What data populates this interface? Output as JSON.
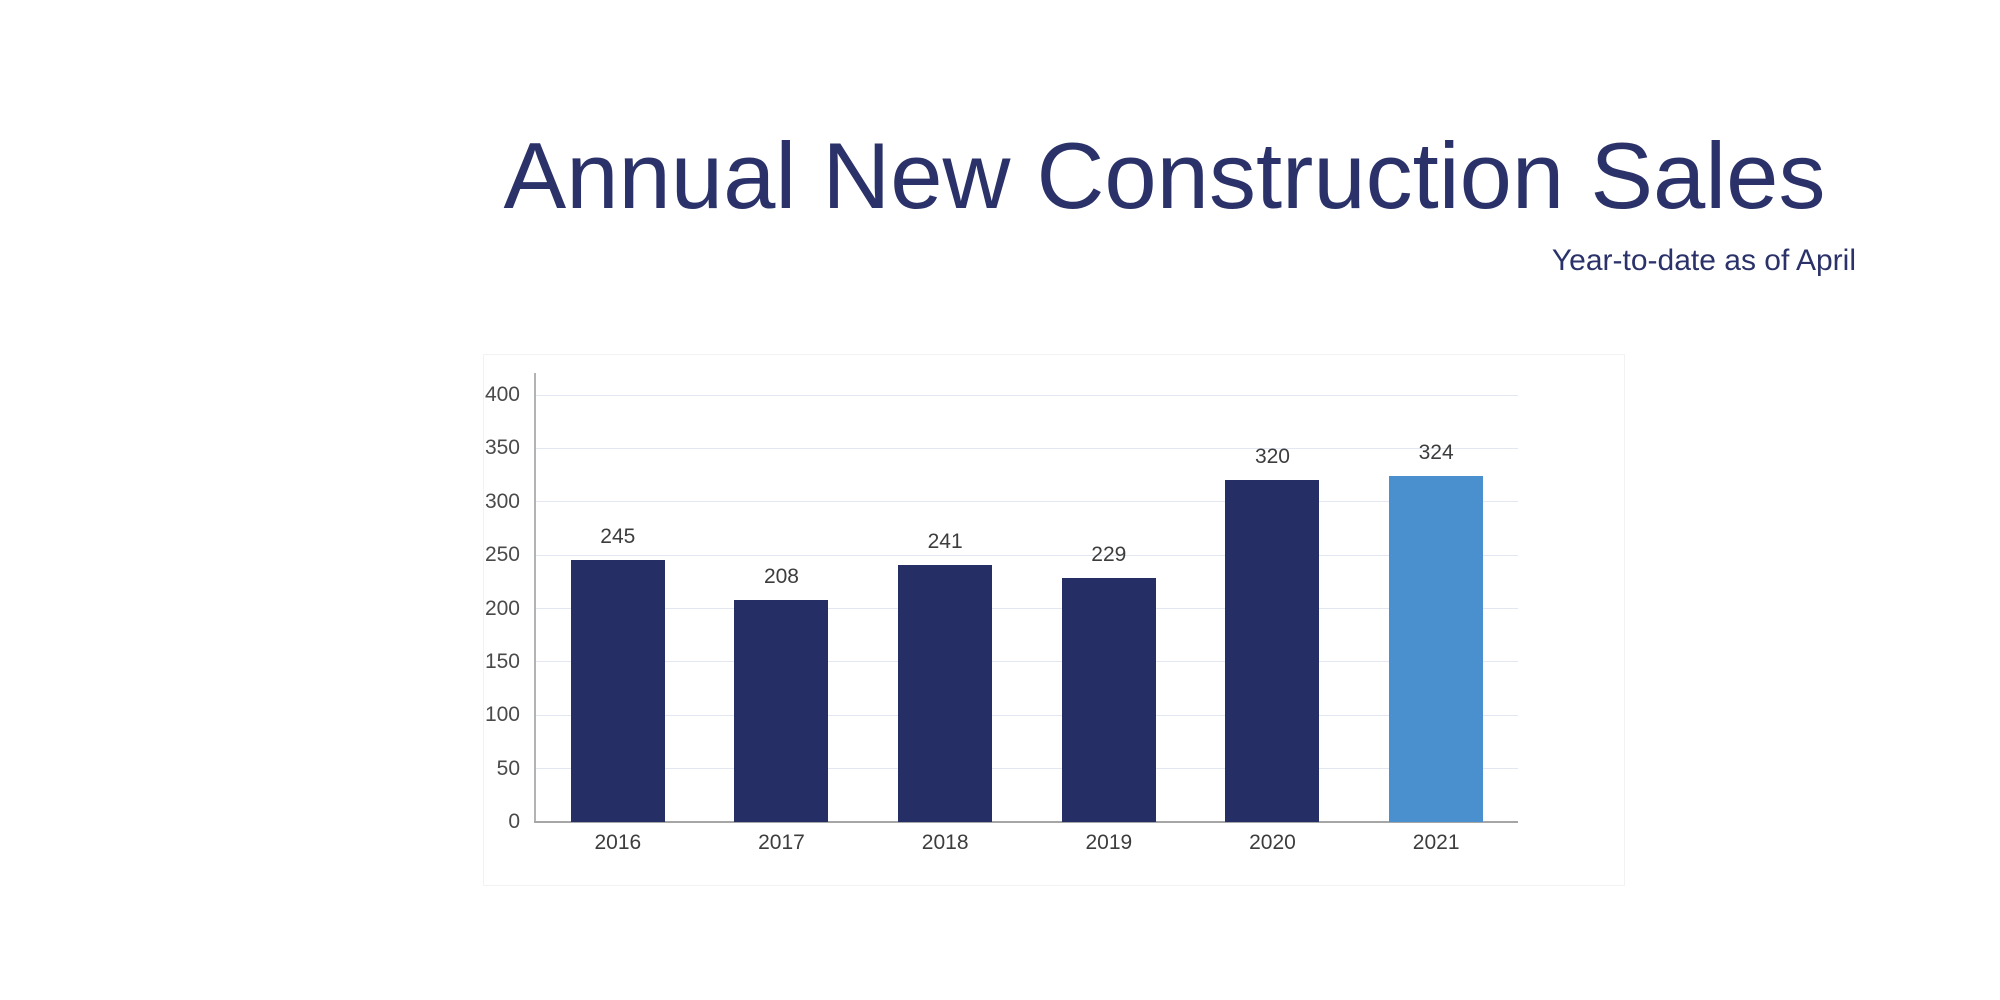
{
  "header": {
    "title": "Annual New Construction Sales",
    "subtitle": "Year-to-date as of April"
  },
  "chart_data": {
    "type": "bar",
    "title": "Annual New Construction Sales",
    "subtitle": "Year-to-date as of April",
    "categories": [
      "2016",
      "2017",
      "2018",
      "2019",
      "2020",
      "2021"
    ],
    "values": [
      245,
      208,
      241,
      229,
      320,
      324
    ],
    "highlight_index": 5,
    "y_ticks": [
      0,
      50,
      100,
      150,
      200,
      250,
      300,
      350,
      400
    ],
    "ylim": [
      0,
      400
    ],
    "xlabel": "",
    "ylabel": "",
    "grid": "horizontal",
    "legend_position": "none",
    "colors": {
      "bar": "#262e66",
      "bar_highlight": "#4a8fce",
      "grid": "#e3e7f1",
      "axis": "#a6a6a6",
      "value_label": "#3d3d3d",
      "tick_label": "#4a4a4a",
      "title": "#2b3269"
    }
  }
}
